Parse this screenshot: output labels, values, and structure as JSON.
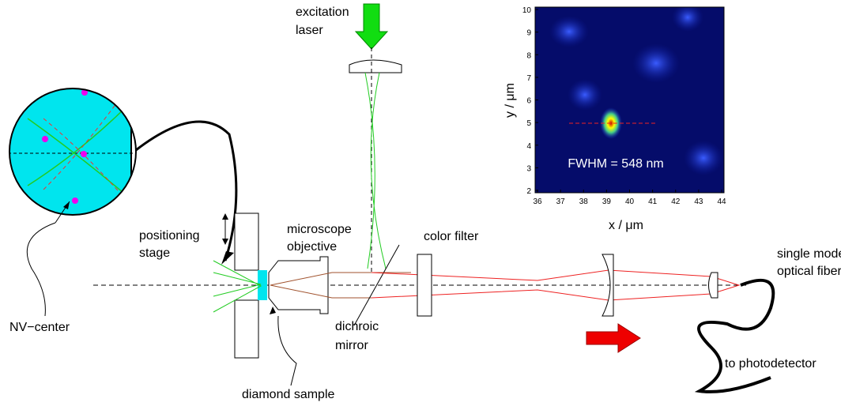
{
  "labels": {
    "excitation": [
      "excitation",
      "laser"
    ],
    "positioning": [
      "positioning",
      "stage"
    ],
    "objective": [
      "microscope",
      "objective"
    ],
    "filter": "color filter",
    "fiber": [
      "single mode",
      "optical fiber"
    ],
    "nv": "NV−center",
    "mirror": [
      "dichroic",
      "mirror"
    ],
    "detector": "to photodetector",
    "sample": "diamond sample"
  },
  "inset": {
    "xlabel": "x / μm",
    "ylabel": "y / μm",
    "annotation": "FWHM = 548 nm",
    "xlim": [
      36,
      44
    ],
    "ylim": [
      2,
      10
    ],
    "xticks": [
      36,
      37,
      38,
      39,
      40,
      41,
      42,
      43,
      44
    ],
    "yticks": [
      2,
      3,
      4,
      5,
      6,
      7,
      8,
      9,
      10
    ]
  }
}
